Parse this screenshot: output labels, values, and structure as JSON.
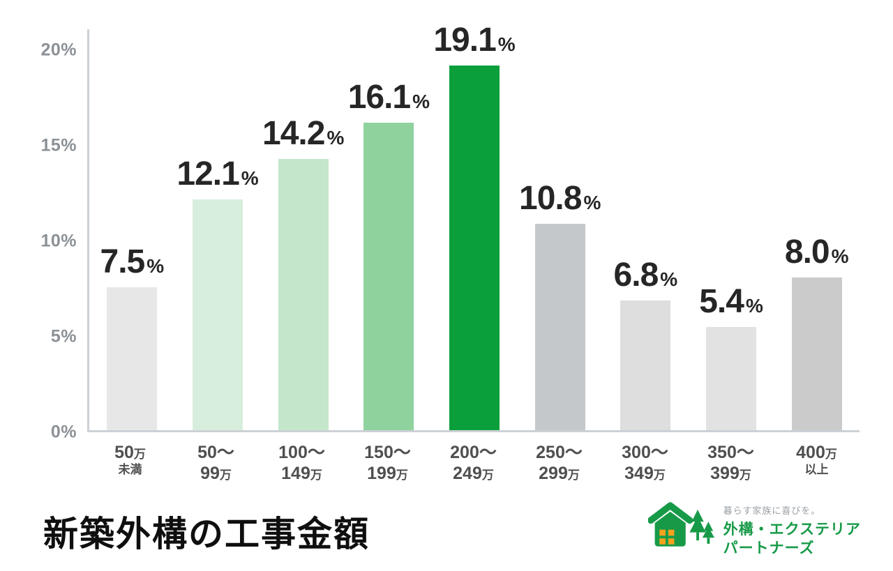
{
  "chart_data": {
    "type": "bar",
    "title": "新築外構の工事金額",
    "xlabel": "",
    "ylabel": "",
    "ylim": [
      0,
      20
    ],
    "grid": false,
    "legend": false,
    "percent_sign": "%",
    "yticks": [
      {
        "value": 20,
        "label": "20%"
      },
      {
        "value": 15,
        "label": "15%"
      },
      {
        "value": 10,
        "label": "10%"
      },
      {
        "value": 5,
        "label": "5%"
      },
      {
        "value": 0,
        "label": "0%"
      }
    ],
    "categories": [
      {
        "line1": [
          {
            "t": "50"
          },
          {
            "t": "万",
            "small": true
          }
        ],
        "line2": [
          {
            "t": "未満",
            "small": true
          }
        ]
      },
      {
        "line1": [
          {
            "t": "50～"
          }
        ],
        "line2": [
          {
            "t": "99"
          },
          {
            "t": "万",
            "small": true
          }
        ]
      },
      {
        "line1": [
          {
            "t": "100～"
          }
        ],
        "line2": [
          {
            "t": "149"
          },
          {
            "t": "万",
            "small": true
          }
        ]
      },
      {
        "line1": [
          {
            "t": "150～"
          }
        ],
        "line2": [
          {
            "t": "199"
          },
          {
            "t": "万",
            "small": true
          }
        ]
      },
      {
        "line1": [
          {
            "t": "200～"
          }
        ],
        "line2": [
          {
            "t": "249"
          },
          {
            "t": "万",
            "small": true
          }
        ]
      },
      {
        "line1": [
          {
            "t": "250～"
          }
        ],
        "line2": [
          {
            "t": "299"
          },
          {
            "t": "万",
            "small": true
          }
        ]
      },
      {
        "line1": [
          {
            "t": "300～"
          }
        ],
        "line2": [
          {
            "t": "349"
          },
          {
            "t": "万",
            "small": true
          }
        ]
      },
      {
        "line1": [
          {
            "t": "350～"
          }
        ],
        "line2": [
          {
            "t": "399"
          },
          {
            "t": "万",
            "small": true
          }
        ]
      },
      {
        "line1": [
          {
            "t": "400"
          },
          {
            "t": "万",
            "small": true
          }
        ],
        "line2": [
          {
            "t": "以上",
            "small": true
          }
        ]
      }
    ],
    "values": [
      7.5,
      12.1,
      14.2,
      16.1,
      19.1,
      10.8,
      6.8,
      5.4,
      8.0
    ],
    "bar_colors": [
      "#e7e7e7",
      "#d8eedd",
      "#c4e6cb",
      "#8fd29e",
      "#0b9f3c",
      "#c5c8ca",
      "#dedede",
      "#e2e2e2",
      "#cbcbcb"
    ]
  },
  "footer": {
    "title": "新築外構の工事金額",
    "logo": {
      "tagline": "暮らす家族に喜びを。",
      "name_line1": "外構・エクステリア",
      "name_line2": "パートナーズ",
      "brand_green": "#179a48",
      "brand_orange": "#f6a21d"
    }
  }
}
